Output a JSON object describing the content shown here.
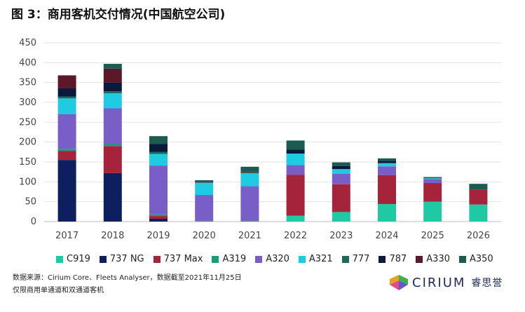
{
  "title": "图 3：商用客机交付情况(中国航空公司)",
  "chart_data": {
    "type": "bar",
    "stacked": true,
    "categories": [
      "2017",
      "2018",
      "2019",
      "2020",
      "2021",
      "2022",
      "2023",
      "2024",
      "2025",
      "2026"
    ],
    "yticks": [
      "0",
      "50",
      "100",
      "150",
      "200",
      "250",
      "300",
      "350",
      "400",
      "450"
    ],
    "ylim": [
      0,
      450
    ],
    "grid": true,
    "legend_position": "bottom",
    "series": [
      {
        "name": "C919",
        "color": "#1ec9a4",
        "values": [
          0,
          0,
          0,
          0,
          0,
          15,
          24,
          44,
          50,
          43
        ]
      },
      {
        "name": "737 NG",
        "color": "#0d1f5e",
        "values": [
          155,
          122,
          7,
          0,
          0,
          0,
          0,
          0,
          0,
          0
        ]
      },
      {
        "name": "737 Max",
        "color": "#a5243b",
        "values": [
          23,
          68,
          7,
          0,
          0,
          103,
          70,
          73,
          47,
          38
        ]
      },
      {
        "name": "A319",
        "color": "#1a9b7a",
        "values": [
          5,
          5,
          4,
          2,
          2,
          0,
          0,
          0,
          0,
          0
        ]
      },
      {
        "name": "A320",
        "color": "#7a5ec7",
        "values": [
          87,
          90,
          123,
          65,
          87,
          24,
          26,
          22,
          10,
          0
        ]
      },
      {
        "name": "A321",
        "color": "#1ecbe3",
        "values": [
          40,
          38,
          29,
          31,
          33,
          29,
          12,
          8,
          2,
          0
        ]
      },
      {
        "name": "777",
        "color": "#1c6a5c",
        "values": [
          5,
          5,
          5,
          0,
          0,
          0,
          0,
          0,
          0,
          0
        ]
      },
      {
        "name": "787",
        "color": "#0a1a3c",
        "values": [
          21,
          22,
          20,
          0,
          0,
          10,
          8,
          6,
          0,
          0
        ]
      },
      {
        "name": "A330",
        "color": "#5c1828",
        "values": [
          32,
          35,
          0,
          2,
          2,
          0,
          0,
          0,
          0,
          0
        ]
      },
      {
        "name": "A350",
        "color": "#1a5c4f",
        "values": [
          0,
          12,
          20,
          4,
          14,
          23,
          9,
          6,
          3,
          14
        ]
      }
    ]
  },
  "source_text": "数据来源：Cirium Core、Fleets Analyser，数据截至2021年11月25日",
  "note_text": "仅限商用单通道和双通道客机",
  "logo": {
    "name": "CIRIUM",
    "cn": "睿思誉",
    "colors": [
      "#e8a020",
      "#3cb34a",
      "#e24a8a",
      "#6a55c8"
    ]
  }
}
